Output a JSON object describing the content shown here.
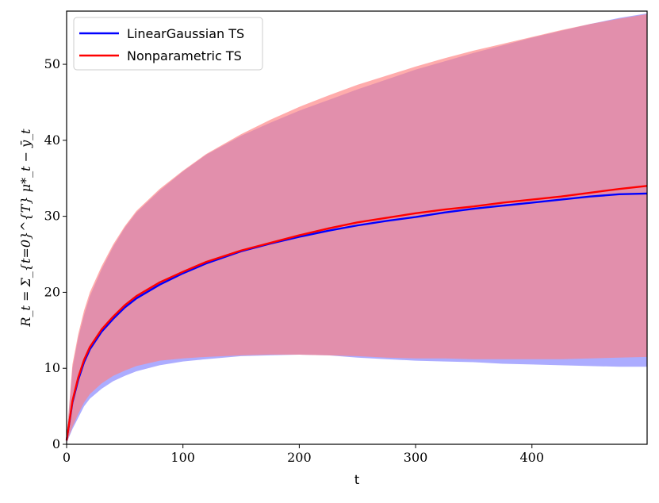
{
  "chart_data": {
    "type": "line",
    "xlabel": "t",
    "ylabel": "R_t = Σ_{t=0}^{T} μ*_t − ȳ_t",
    "xlim": [
      0,
      499
    ],
    "ylim": [
      0,
      57
    ],
    "xticks": [
      0,
      100,
      200,
      300,
      400
    ],
    "yticks": [
      0,
      10,
      20,
      30,
      40,
      50
    ],
    "legend_position": "top-left",
    "grid": false,
    "series": [
      {
        "name": "LinearGaussian TS",
        "color": "#0000ff",
        "band_color": "#8080ff",
        "x": [
          0,
          5,
          10,
          15,
          20,
          30,
          40,
          50,
          60,
          80,
          100,
          120,
          150,
          175,
          200,
          225,
          250,
          275,
          300,
          325,
          350,
          375,
          400,
          425,
          450,
          475,
          499
        ],
        "mean": [
          0.5,
          5.5,
          8.5,
          10.8,
          12.5,
          14.8,
          16.5,
          18.0,
          19.2,
          21.0,
          22.5,
          23.8,
          25.4,
          26.4,
          27.3,
          28.1,
          28.8,
          29.4,
          29.9,
          30.5,
          31.0,
          31.4,
          31.8,
          32.2,
          32.6,
          32.9,
          33.0
        ],
        "lower": [
          0.2,
          2.0,
          3.5,
          5.0,
          6.0,
          7.3,
          8.3,
          9.0,
          9.6,
          10.4,
          10.9,
          11.2,
          11.6,
          11.7,
          11.8,
          11.7,
          11.4,
          11.2,
          11.0,
          10.9,
          10.8,
          10.6,
          10.5,
          10.4,
          10.3,
          10.2,
          10.2
        ],
        "upper": [
          0.8,
          10.0,
          14.0,
          17.0,
          19.5,
          23.0,
          26.0,
          28.5,
          30.5,
          33.4,
          35.9,
          38.1,
          40.6,
          42.3,
          43.9,
          45.3,
          46.7,
          48.0,
          49.3,
          50.4,
          51.5,
          52.5,
          53.5,
          54.4,
          55.3,
          56.1,
          56.7
        ]
      },
      {
        "name": "Nonparametric TS",
        "color": "#ff0000",
        "band_color": "#ff8080",
        "x": [
          0,
          5,
          10,
          15,
          20,
          30,
          40,
          50,
          60,
          80,
          100,
          120,
          150,
          175,
          200,
          225,
          250,
          275,
          300,
          325,
          350,
          375,
          400,
          425,
          450,
          475,
          499
        ],
        "mean": [
          0.5,
          5.7,
          8.8,
          11.1,
          12.8,
          15.1,
          16.8,
          18.3,
          19.5,
          21.3,
          22.7,
          24.0,
          25.5,
          26.5,
          27.5,
          28.4,
          29.2,
          29.8,
          30.4,
          30.9,
          31.3,
          31.8,
          32.2,
          32.6,
          33.1,
          33.6,
          34.0
        ],
        "lower": [
          0.2,
          2.3,
          4.0,
          5.5,
          6.6,
          8.0,
          9.0,
          9.7,
          10.3,
          11.0,
          11.3,
          11.5,
          11.7,
          11.8,
          11.8,
          11.7,
          11.6,
          11.4,
          11.3,
          11.3,
          11.2,
          11.2,
          11.2,
          11.2,
          11.3,
          11.4,
          11.5
        ],
        "upper": [
          0.9,
          10.5,
          14.5,
          17.6,
          20.0,
          23.4,
          26.3,
          28.7,
          30.7,
          33.6,
          36.0,
          38.2,
          40.8,
          42.7,
          44.4,
          45.9,
          47.3,
          48.5,
          49.7,
          50.8,
          51.8,
          52.7,
          53.6,
          54.5,
          55.3,
          56.0,
          56.6
        ]
      }
    ]
  }
}
